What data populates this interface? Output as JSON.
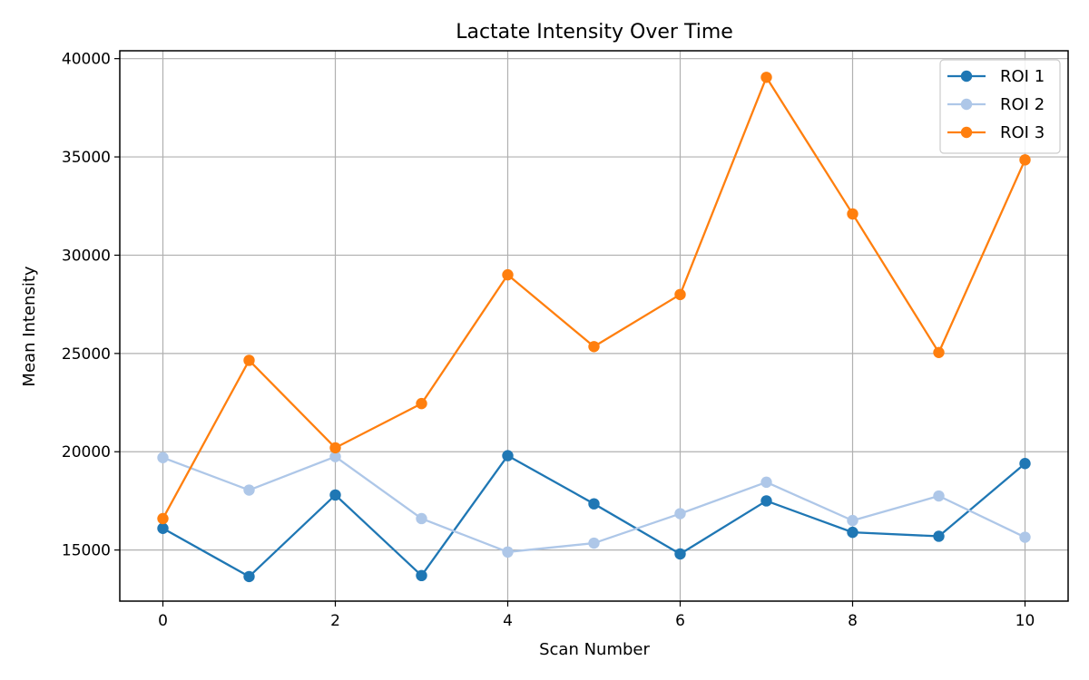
{
  "chart_data": {
    "type": "line",
    "title": "Lactate Intensity Over Time",
    "xlabel": "Scan Number",
    "ylabel": "Mean Intensity",
    "x": [
      0,
      1,
      2,
      3,
      4,
      5,
      6,
      7,
      8,
      9,
      10
    ],
    "xlim": [
      -0.5,
      10.5
    ],
    "ylim": [
      12400,
      40400
    ],
    "x_ticks": [
      0,
      2,
      4,
      6,
      8,
      10
    ],
    "y_ticks": [
      15000,
      20000,
      25000,
      30000,
      35000,
      40000
    ],
    "grid": true,
    "legend_position": "top-right",
    "markers": "circle",
    "series": [
      {
        "name": "ROI 1",
        "color": "#1f77b4",
        "values": [
          16100,
          13650,
          17800,
          13700,
          19800,
          17350,
          14800,
          17500,
          15900,
          15700,
          19400
        ]
      },
      {
        "name": "ROI 2",
        "color": "#aec7e8",
        "values": [
          19700,
          18050,
          19750,
          16600,
          14900,
          15350,
          16850,
          18450,
          16500,
          17750,
          15650
        ]
      },
      {
        "name": "ROI 3",
        "color": "#ff7f0e",
        "values": [
          16600,
          24650,
          20200,
          22450,
          29000,
          25350,
          28000,
          39050,
          32100,
          25050,
          34850
        ]
      }
    ]
  }
}
